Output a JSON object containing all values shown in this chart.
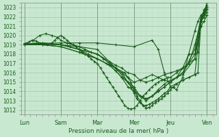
{
  "xlabel": "Pression niveau de la mer( hPa )",
  "background_color": "#c8e8d0",
  "grid_major_color": "#a8c8b0",
  "grid_minor_color": "#c0ddc8",
  "line_color": "#1a5c1a",
  "ylim": [
    1011.5,
    1023.5
  ],
  "yticks": [
    1012,
    1013,
    1014,
    1015,
    1016,
    1017,
    1018,
    1019,
    1020,
    1021,
    1022,
    1023
  ],
  "x_labels": [
    "Lun",
    "Sam",
    "Mar",
    "Mer",
    "Jeu",
    "Ven"
  ],
  "x_positions": [
    0,
    24,
    48,
    72,
    96,
    120
  ],
  "xlim": [
    -2,
    126
  ],
  "series": [
    [
      [
        0,
        1019.1
      ],
      [
        3,
        1019.3
      ],
      [
        5,
        1019.5
      ],
      [
        8,
        1019.4
      ],
      [
        10,
        1019.2
      ],
      [
        13,
        1019.1
      ],
      [
        15,
        1019.0
      ],
      [
        18,
        1019.2
      ],
      [
        20,
        1019.5
      ],
      [
        22,
        1019.8
      ],
      [
        24,
        1020.0
      ],
      [
        26,
        1019.8
      ],
      [
        28,
        1019.5
      ],
      [
        30,
        1019.2
      ],
      [
        32,
        1019.0
      ],
      [
        34,
        1018.8
      ],
      [
        36,
        1018.5
      ],
      [
        38,
        1018.2
      ],
      [
        40,
        1018.0
      ],
      [
        42,
        1017.8
      ],
      [
        44,
        1017.5
      ],
      [
        46,
        1017.2
      ],
      [
        48,
        1017.0
      ],
      [
        50,
        1016.5
      ],
      [
        52,
        1016.0
      ],
      [
        54,
        1015.5
      ],
      [
        56,
        1015.0
      ],
      [
        58,
        1014.5
      ],
      [
        60,
        1014.0
      ],
      [
        62,
        1013.5
      ],
      [
        64,
        1013.0
      ],
      [
        66,
        1012.5
      ],
      [
        68,
        1012.2
      ],
      [
        70,
        1012.1
      ],
      [
        72,
        1012.2
      ],
      [
        74,
        1012.5
      ],
      [
        76,
        1013.0
      ],
      [
        78,
        1013.5
      ],
      [
        80,
        1013.8
      ],
      [
        82,
        1014.2
      ],
      [
        84,
        1014.5
      ],
      [
        86,
        1014.8
      ],
      [
        88,
        1015.0
      ],
      [
        90,
        1015.2
      ],
      [
        92,
        1015.3
      ],
      [
        94,
        1015.5
      ],
      [
        96,
        1015.5
      ],
      [
        100,
        1016.0
      ],
      [
        104,
        1016.5
      ],
      [
        108,
        1017.0
      ],
      [
        112,
        1019.0
      ],
      [
        116,
        1021.5
      ],
      [
        118,
        1022.5
      ],
      [
        120,
        1023.2
      ]
    ],
    [
      [
        0,
        1019.1
      ],
      [
        24,
        1019.0
      ],
      [
        36,
        1018.8
      ],
      [
        48,
        1018.5
      ],
      [
        60,
        1016.5
      ],
      [
        68,
        1015.0
      ],
      [
        72,
        1014.5
      ],
      [
        76,
        1013.5
      ],
      [
        80,
        1013.0
      ],
      [
        84,
        1013.5
      ],
      [
        88,
        1014.0
      ],
      [
        92,
        1014.5
      ],
      [
        96,
        1015.0
      ],
      [
        104,
        1016.0
      ],
      [
        112,
        1018.5
      ],
      [
        116,
        1022.0
      ],
      [
        118,
        1022.2
      ],
      [
        120,
        1022.8
      ]
    ],
    [
      [
        0,
        1019.1
      ],
      [
        12,
        1019.2
      ],
      [
        24,
        1019.0
      ],
      [
        36,
        1018.5
      ],
      [
        48,
        1018.0
      ],
      [
        56,
        1017.0
      ],
      [
        60,
        1016.5
      ],
      [
        64,
        1016.0
      ],
      [
        68,
        1015.0
      ],
      [
        72,
        1014.2
      ],
      [
        76,
        1013.5
      ],
      [
        80,
        1013.2
      ],
      [
        84,
        1013.5
      ],
      [
        88,
        1014.0
      ],
      [
        92,
        1014.5
      ],
      [
        96,
        1015.0
      ],
      [
        104,
        1016.0
      ],
      [
        112,
        1018.0
      ],
      [
        116,
        1021.5
      ],
      [
        118,
        1022.0
      ],
      [
        120,
        1022.5
      ]
    ],
    [
      [
        0,
        1019.0
      ],
      [
        12,
        1019.0
      ],
      [
        24,
        1018.8
      ],
      [
        36,
        1018.2
      ],
      [
        48,
        1017.5
      ],
      [
        56,
        1016.8
      ],
      [
        60,
        1016.2
      ],
      [
        64,
        1015.5
      ],
      [
        68,
        1014.5
      ],
      [
        72,
        1014.0
      ],
      [
        76,
        1013.5
      ],
      [
        80,
        1013.2
      ],
      [
        84,
        1013.5
      ],
      [
        88,
        1014.2
      ],
      [
        92,
        1014.8
      ],
      [
        96,
        1015.2
      ],
      [
        104,
        1015.8
      ],
      [
        112,
        1017.5
      ],
      [
        116,
        1021.0
      ],
      [
        118,
        1021.5
      ],
      [
        120,
        1022.2
      ]
    ],
    [
      [
        0,
        1019.1
      ],
      [
        12,
        1019.2
      ],
      [
        24,
        1019.0
      ],
      [
        30,
        1018.8
      ],
      [
        36,
        1018.5
      ],
      [
        42,
        1018.0
      ],
      [
        48,
        1017.5
      ],
      [
        54,
        1017.0
      ],
      [
        60,
        1016.5
      ],
      [
        66,
        1016.0
      ],
      [
        68,
        1015.5
      ],
      [
        70,
        1015.0
      ],
      [
        72,
        1014.2
      ],
      [
        74,
        1013.5
      ],
      [
        76,
        1013.0
      ],
      [
        78,
        1012.5
      ],
      [
        80,
        1012.2
      ],
      [
        82,
        1012.3
      ],
      [
        84,
        1012.5
      ],
      [
        86,
        1012.8
      ],
      [
        88,
        1013.0
      ],
      [
        90,
        1013.2
      ],
      [
        92,
        1013.5
      ],
      [
        94,
        1013.8
      ],
      [
        96,
        1014.2
      ],
      [
        98,
        1014.5
      ],
      [
        100,
        1014.8
      ],
      [
        104,
        1015.2
      ],
      [
        108,
        1015.5
      ],
      [
        112,
        1015.8
      ],
      [
        114,
        1016.0
      ],
      [
        116,
        1021.5
      ],
      [
        118,
        1022.8
      ],
      [
        120,
        1023.0
      ]
    ],
    [
      [
        0,
        1019.0
      ],
      [
        12,
        1019.0
      ],
      [
        24,
        1018.8
      ],
      [
        36,
        1018.2
      ],
      [
        48,
        1017.5
      ],
      [
        56,
        1016.8
      ],
      [
        60,
        1016.2
      ],
      [
        64,
        1015.5
      ],
      [
        68,
        1015.0
      ],
      [
        70,
        1014.5
      ],
      [
        72,
        1013.8
      ],
      [
        74,
        1013.2
      ],
      [
        76,
        1012.8
      ],
      [
        78,
        1012.5
      ],
      [
        80,
        1012.5
      ],
      [
        82,
        1012.6
      ],
      [
        84,
        1012.8
      ],
      [
        86,
        1013.0
      ],
      [
        88,
        1013.2
      ],
      [
        90,
        1013.5
      ],
      [
        92,
        1013.8
      ],
      [
        94,
        1014.0
      ],
      [
        96,
        1014.5
      ],
      [
        104,
        1015.2
      ],
      [
        112,
        1015.8
      ],
      [
        116,
        1021.5
      ],
      [
        118,
        1022.0
      ],
      [
        120,
        1023.0
      ]
    ],
    [
      [
        0,
        1019.0
      ],
      [
        12,
        1019.1
      ],
      [
        24,
        1019.0
      ],
      [
        36,
        1018.5
      ],
      [
        48,
        1018.0
      ],
      [
        56,
        1017.2
      ],
      [
        60,
        1016.8
      ],
      [
        64,
        1016.5
      ],
      [
        68,
        1016.0
      ],
      [
        72,
        1015.8
      ],
      [
        76,
        1015.2
      ],
      [
        80,
        1015.0
      ],
      [
        84,
        1015.2
      ],
      [
        88,
        1015.5
      ],
      [
        92,
        1015.8
      ],
      [
        96,
        1016.0
      ],
      [
        100,
        1016.2
      ],
      [
        104,
        1016.5
      ],
      [
        108,
        1017.0
      ],
      [
        112,
        1017.5
      ],
      [
        116,
        1021.8
      ],
      [
        118,
        1022.2
      ],
      [
        120,
        1023.0
      ]
    ],
    [
      [
        0,
        1019.1
      ],
      [
        6,
        1019.5
      ],
      [
        10,
        1020.0
      ],
      [
        14,
        1020.2
      ],
      [
        18,
        1020.0
      ],
      [
        22,
        1019.8
      ],
      [
        24,
        1019.5
      ],
      [
        28,
        1019.2
      ],
      [
        32,
        1019.0
      ],
      [
        36,
        1018.8
      ],
      [
        40,
        1018.5
      ],
      [
        44,
        1018.2
      ],
      [
        48,
        1018.0
      ],
      [
        52,
        1017.5
      ],
      [
        56,
        1017.0
      ],
      [
        60,
        1016.5
      ],
      [
        64,
        1016.0
      ],
      [
        68,
        1015.5
      ],
      [
        72,
        1015.0
      ],
      [
        76,
        1015.2
      ],
      [
        80,
        1015.5
      ],
      [
        84,
        1015.8
      ],
      [
        88,
        1015.5
      ],
      [
        92,
        1015.2
      ],
      [
        96,
        1015.0
      ],
      [
        100,
        1015.5
      ],
      [
        104,
        1016.5
      ],
      [
        108,
        1018.0
      ],
      [
        112,
        1018.0
      ],
      [
        114,
        1018.2
      ],
      [
        116,
        1021.5
      ],
      [
        118,
        1022.5
      ],
      [
        120,
        1022.8
      ]
    ],
    [
      [
        0,
        1019.1
      ],
      [
        24,
        1019.2
      ],
      [
        36,
        1019.2
      ],
      [
        48,
        1019.2
      ],
      [
        60,
        1019.0
      ],
      [
        72,
        1018.8
      ],
      [
        84,
        1019.5
      ],
      [
        88,
        1018.5
      ],
      [
        92,
        1016.0
      ],
      [
        96,
        1014.5
      ],
      [
        100,
        1014.2
      ],
      [
        104,
        1015.5
      ],
      [
        108,
        1018.0
      ],
      [
        112,
        1020.5
      ],
      [
        114,
        1021.5
      ],
      [
        116,
        1022.2
      ],
      [
        118,
        1022.5
      ],
      [
        120,
        1023.5
      ]
    ]
  ]
}
